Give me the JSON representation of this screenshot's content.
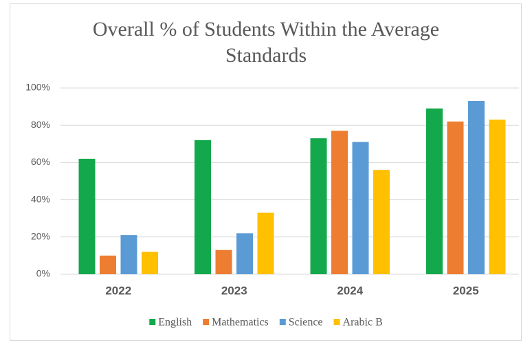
{
  "chart_data": {
    "type": "bar",
    "title": "Overall % of Students Within the Average Standards",
    "categories": [
      "2022",
      "2023",
      "2024",
      "2025"
    ],
    "series": [
      {
        "name": "English",
        "color": "#13a84b",
        "values": [
          62,
          72,
          73,
          89
        ]
      },
      {
        "name": "Mathematics",
        "color": "#ed7d31",
        "values": [
          10,
          13,
          77,
          82
        ]
      },
      {
        "name": "Science",
        "color": "#5b9bd5",
        "values": [
          21,
          22,
          71,
          93
        ]
      },
      {
        "name": "Arabic B",
        "color": "#ffc000",
        "values": [
          12,
          33,
          56,
          83
        ]
      }
    ],
    "ylim": [
      0,
      100
    ],
    "yticks": [
      {
        "value": 0,
        "label": "0%"
      },
      {
        "value": 20,
        "label": "20%"
      },
      {
        "value": 40,
        "label": "40%"
      },
      {
        "value": 60,
        "label": "60%"
      },
      {
        "value": 80,
        "label": "80%"
      },
      {
        "value": 100,
        "label": "100%"
      }
    ],
    "grid": true,
    "legend": "bottom"
  }
}
